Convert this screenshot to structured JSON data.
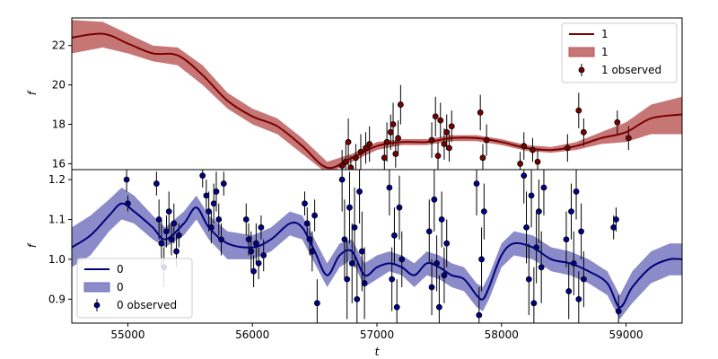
{
  "chart_data": [
    {
      "panel": "top",
      "type": "line",
      "xlabel": "",
      "ylabel": "f",
      "xlim": [
        54550,
        59450
      ],
      "ylim": [
        15.7,
        23.4
      ],
      "yticks": [
        16,
        18,
        20,
        22
      ],
      "xticks": [],
      "grid": false,
      "legend": {
        "placement": "top-right",
        "entries": [
          {
            "label": "1",
            "kind": "line"
          },
          {
            "label": "1",
            "kind": "band"
          },
          {
            "label": "1 observed",
            "kind": "errorbar"
          }
        ]
      },
      "colors": {
        "line": "#7a0000",
        "band": "#b95454",
        "marker": "#7a0000"
      },
      "series": [
        {
          "kind": "line",
          "x": [
            54550,
            54800,
            55000,
            55200,
            55400,
            55600,
            55800,
            56000,
            56200,
            56400,
            56600,
            56800,
            57000,
            57200,
            57400,
            57600,
            57800,
            58000,
            58200,
            58400,
            58600,
            58800,
            59000,
            59200,
            59450
          ],
          "y": [
            22.4,
            22.6,
            22.1,
            21.6,
            21.5,
            20.5,
            19.2,
            18.4,
            17.9,
            16.9,
            15.8,
            16.3,
            16.9,
            17.1,
            17.1,
            17.3,
            17.3,
            17.1,
            16.8,
            16.7,
            16.9,
            17.3,
            17.6,
            18.3,
            18.5
          ]
        },
        {
          "kind": "band",
          "x": [
            54550,
            54800,
            55000,
            55200,
            55400,
            55600,
            55800,
            56000,
            56200,
            56400,
            56600,
            56800,
            57000,
            57200,
            57400,
            57600,
            57800,
            58000,
            58200,
            58400,
            58600,
            58800,
            59000,
            59200,
            59450
          ],
          "lower": [
            21.6,
            21.9,
            21.6,
            21.2,
            21.0,
            20.0,
            18.8,
            18.0,
            17.5,
            16.5,
            15.5,
            16.1,
            16.7,
            16.95,
            16.95,
            17.15,
            17.15,
            16.95,
            16.65,
            16.55,
            16.7,
            17.0,
            17.1,
            17.5,
            17.5
          ],
          "upper": [
            23.3,
            23.2,
            22.6,
            22.0,
            21.9,
            21.0,
            19.6,
            18.8,
            18.3,
            17.3,
            16.1,
            16.5,
            17.1,
            17.25,
            17.25,
            17.45,
            17.45,
            17.25,
            16.95,
            16.85,
            17.1,
            17.6,
            18.1,
            19.0,
            19.4
          ]
        },
        {
          "kind": "errorbar",
          "points": [
            [
              56720,
              15.9,
              0.8
            ],
            [
              56750,
              16.1,
              1.0
            ],
            [
              56770,
              17.1,
              1.2
            ],
            [
              56790,
              15.8,
              0.6
            ],
            [
              56830,
              16.3,
              0.7
            ],
            [
              56870,
              16.6,
              0.9
            ],
            [
              56910,
              16.8,
              0.8
            ],
            [
              56940,
              17.0,
              0.9
            ],
            [
              57060,
              16.3,
              0.8
            ],
            [
              57080,
              17.1,
              1.0
            ],
            [
              57110,
              17.6,
              0.9
            ],
            [
              57130,
              18.0,
              1.1
            ],
            [
              57150,
              16.5,
              0.7
            ],
            [
              57170,
              17.3,
              0.9
            ],
            [
              57190,
              19.0,
              1.0
            ],
            [
              57440,
              17.2,
              0.9
            ],
            [
              57470,
              18.4,
              1.0
            ],
            [
              57490,
              16.4,
              0.7
            ],
            [
              57510,
              18.2,
              0.9
            ],
            [
              57540,
              17.0,
              0.8
            ],
            [
              57560,
              17.6,
              0.9
            ],
            [
              57580,
              16.8,
              0.7
            ],
            [
              57600,
              17.9,
              0.8
            ],
            [
              57830,
              18.6,
              0.9
            ],
            [
              57850,
              16.3,
              0.7
            ],
            [
              57880,
              17.2,
              0.8
            ],
            [
              58150,
              16.0,
              0.6
            ],
            [
              58180,
              16.9,
              0.7
            ],
            [
              58250,
              16.7,
              0.6
            ],
            [
              58290,
              16.1,
              0.6
            ],
            [
              58530,
              16.8,
              0.7
            ],
            [
              58620,
              18.7,
              0.9
            ],
            [
              58660,
              17.6,
              0.7
            ],
            [
              58930,
              18.1,
              0.6
            ],
            [
              59020,
              17.3,
              0.6
            ]
          ]
        }
      ]
    },
    {
      "panel": "bottom",
      "type": "line",
      "xlabel": "t",
      "ylabel": "f",
      "xlim": [
        54550,
        59450
      ],
      "ylim": [
        0.84,
        1.225
      ],
      "yticks": [
        0.9,
        1.0,
        1.1,
        1.2
      ],
      "xticks": [
        55000,
        56000,
        57000,
        58000,
        59000
      ],
      "grid": false,
      "legend": {
        "placement": "bottom-left",
        "entries": [
          {
            "label": "0",
            "kind": "line"
          },
          {
            "label": "0",
            "kind": "band"
          },
          {
            "label": "0 observed",
            "kind": "errorbar"
          }
        ]
      },
      "colors": {
        "line": "#00007a",
        "band": "#6e6ebb",
        "marker": "#00008b"
      },
      "series": [
        {
          "kind": "line",
          "x": [
            54550,
            54700,
            54850,
            54950,
            55050,
            55200,
            55300,
            55450,
            55550,
            55650,
            55800,
            56000,
            56150,
            56300,
            56400,
            56500,
            56600,
            56700,
            56800,
            56900,
            57000,
            57100,
            57200,
            57300,
            57400,
            57500,
            57600,
            57700,
            57800,
            57850,
            57900,
            58000,
            58100,
            58250,
            58400,
            58550,
            58700,
            58850,
            58950,
            59050,
            59200,
            59350,
            59450
          ],
          "y": [
            1.03,
            1.06,
            1.11,
            1.14,
            1.12,
            1.08,
            1.05,
            1.09,
            1.13,
            1.08,
            1.04,
            1.03,
            1.05,
            1.09,
            1.08,
            1.02,
            0.96,
            1.01,
            1.02,
            0.96,
            0.98,
            0.99,
            0.98,
            0.96,
            0.99,
            0.98,
            0.96,
            0.95,
            0.91,
            0.9,
            0.93,
            1.01,
            1.04,
            1.03,
            1.0,
            0.99,
            0.97,
            0.94,
            0.88,
            0.93,
            0.98,
            1.0,
            1.0
          ]
        },
        {
          "kind": "band",
          "x": [
            54550,
            54700,
            54850,
            54950,
            55050,
            55200,
            55300,
            55450,
            55550,
            55650,
            55800,
            56000,
            56150,
            56300,
            56400,
            56500,
            56600,
            56700,
            56800,
            56900,
            57000,
            57100,
            57200,
            57300,
            57400,
            57500,
            57600,
            57700,
            57800,
            57850,
            57900,
            58000,
            58100,
            58250,
            58400,
            58550,
            58700,
            58850,
            58950,
            59050,
            59200,
            59350,
            59450
          ],
          "lower": [
            0.98,
            1.01,
            1.07,
            1.1,
            1.09,
            1.05,
            1.03,
            1.06,
            1.1,
            1.05,
            1.0,
            1.0,
            1.02,
            1.06,
            1.05,
            0.99,
            0.93,
            0.98,
            1.0,
            0.93,
            0.95,
            0.97,
            0.96,
            0.93,
            0.96,
            0.95,
            0.93,
            0.92,
            0.88,
            0.87,
            0.9,
            0.98,
            1.01,
            1.0,
            0.97,
            0.96,
            0.94,
            0.91,
            0.85,
            0.89,
            0.94,
            0.96,
            0.96
          ],
          "upper": [
            1.08,
            1.11,
            1.15,
            1.18,
            1.16,
            1.11,
            1.08,
            1.12,
            1.16,
            1.11,
            1.07,
            1.06,
            1.08,
            1.12,
            1.11,
            1.05,
            0.99,
            1.04,
            1.05,
            0.99,
            1.01,
            1.02,
            1.01,
            0.99,
            1.02,
            1.01,
            0.99,
            0.98,
            0.94,
            0.93,
            0.96,
            1.04,
            1.07,
            1.06,
            1.03,
            1.02,
            1.0,
            0.97,
            0.91,
            0.97,
            1.02,
            1.04,
            1.04
          ]
        },
        {
          "kind": "errorbar",
          "points": [
            [
              54990,
              1.2,
              0.03
            ],
            [
              55000,
              1.14,
              0.02
            ],
            [
              55230,
              1.19,
              0.03
            ],
            [
              55250,
              1.1,
              0.05
            ],
            [
              55270,
              1.04,
              0.06
            ],
            [
              55290,
              0.98,
              0.05
            ],
            [
              55310,
              1.07,
              0.04
            ],
            [
              55330,
              1.12,
              0.05
            ],
            [
              55350,
              1.05,
              0.04
            ],
            [
              55370,
              1.09,
              0.05
            ],
            [
              55390,
              1.02,
              0.04
            ],
            [
              55410,
              1.06,
              0.03
            ],
            [
              55600,
              1.21,
              0.03
            ],
            [
              55630,
              1.16,
              0.04
            ],
            [
              55650,
              1.12,
              0.05
            ],
            [
              55670,
              1.08,
              0.04
            ],
            [
              55690,
              1.14,
              0.05
            ],
            [
              55710,
              1.17,
              0.05
            ],
            [
              55730,
              1.1,
              0.04
            ],
            [
              55750,
              1.05,
              0.04
            ],
            [
              55770,
              1.19,
              0.03
            ],
            [
              55950,
              1.1,
              0.04
            ],
            [
              55970,
              1.05,
              0.04
            ],
            [
              55990,
              1.02,
              0.05
            ],
            [
              56010,
              0.97,
              0.04
            ],
            [
              56030,
              1.04,
              0.05
            ],
            [
              56050,
              0.99,
              0.04
            ],
            [
              56070,
              1.08,
              0.03
            ],
            [
              56090,
              1.01,
              0.04
            ],
            [
              56420,
              1.14,
              0.03
            ],
            [
              56440,
              1.09,
              0.04
            ],
            [
              56460,
              1.05,
              0.04
            ],
            [
              56480,
              1.02,
              0.05
            ],
            [
              56500,
              1.11,
              0.04
            ],
            [
              56520,
              0.89,
              0.06
            ],
            [
              56720,
              1.2,
              0.08
            ],
            [
              56740,
              1.05,
              0.1
            ],
            [
              56760,
              0.95,
              0.1
            ],
            [
              56780,
              1.13,
              0.09
            ],
            [
              56800,
              0.99,
              0.1
            ],
            [
              56820,
              1.08,
              0.1
            ],
            [
              56840,
              0.9,
              0.09
            ],
            [
              56860,
              1.17,
              0.08
            ],
            [
              56880,
              1.02,
              0.1
            ],
            [
              56900,
              0.94,
              0.09
            ],
            [
              57100,
              1.18,
              0.07
            ],
            [
              57120,
              0.95,
              0.08
            ],
            [
              57140,
              1.06,
              0.07
            ],
            [
              57160,
              0.88,
              0.07
            ],
            [
              57180,
              1.13,
              0.08
            ],
            [
              57200,
              1.0,
              0.07
            ],
            [
              57420,
              1.07,
              0.08
            ],
            [
              57440,
              0.93,
              0.07
            ],
            [
              57460,
              1.15,
              0.08
            ],
            [
              57480,
              0.99,
              0.07
            ],
            [
              57500,
              0.88,
              0.08
            ],
            [
              57520,
              1.1,
              0.07
            ],
            [
              57540,
              0.96,
              0.07
            ],
            [
              57560,
              1.04,
              0.06
            ],
            [
              57800,
              1.19,
              0.08
            ],
            [
              57820,
              0.86,
              0.07
            ],
            [
              57840,
              1.0,
              0.08
            ],
            [
              57860,
              1.12,
              0.07
            ],
            [
              58180,
              1.21,
              0.07
            ],
            [
              58200,
              1.08,
              0.09
            ],
            [
              58220,
              0.95,
              0.09
            ],
            [
              58240,
              1.16,
              0.08
            ],
            [
              58260,
              0.89,
              0.09
            ],
            [
              58280,
              1.03,
              0.09
            ],
            [
              58300,
              1.12,
              0.08
            ],
            [
              58320,
              0.98,
              0.09
            ],
            [
              58340,
              1.18,
              0.07
            ],
            [
              58520,
              1.05,
              0.07
            ],
            [
              58540,
              0.92,
              0.07
            ],
            [
              58560,
              1.12,
              0.07
            ],
            [
              58580,
              0.99,
              0.08
            ],
            [
              58600,
              1.17,
              0.07
            ],
            [
              58620,
              0.9,
              0.07
            ],
            [
              58640,
              1.07,
              0.07
            ],
            [
              58660,
              0.95,
              0.07
            ],
            [
              58900,
              1.08,
              0.03
            ],
            [
              58920,
              1.1,
              0.03
            ],
            [
              58940,
              0.87,
              0.04
            ]
          ]
        }
      ]
    }
  ]
}
